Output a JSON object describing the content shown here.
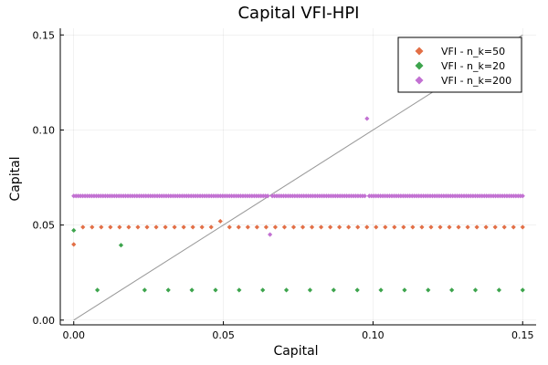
{
  "chart_data": {
    "type": "scatter",
    "title": "Capital VFI-HPI",
    "xlabel": "Capital",
    "ylabel": "Capital",
    "xlim": [
      -0.0045,
      0.1545
    ],
    "ylim": [
      -0.0025,
      0.1535
    ],
    "xticks": [
      0.0,
      0.05,
      0.1,
      0.15
    ],
    "xtick_labels": [
      "0.00",
      "0.05",
      "0.10",
      "0.15"
    ],
    "yticks": [
      0.0,
      0.05,
      0.1,
      0.15
    ],
    "ytick_labels": [
      "0.00",
      "0.05",
      "0.10",
      "0.15"
    ],
    "grid": true,
    "legend_position": "top-right",
    "reference_line": {
      "x": [
        0.0,
        0.15
      ],
      "y": [
        0.0,
        0.15
      ],
      "color": "#999999"
    },
    "series": [
      {
        "name": "VFI - n_k=50",
        "color": "#e26f46",
        "x_range": [
          0.0,
          0.15
        ],
        "count": 50,
        "base_value": 0.0489,
        "overrides": [
          {
            "x": 0.0,
            "y": 0.0398
          },
          {
            "x": 0.049,
            "y": 0.052
          }
        ]
      },
      {
        "name": "VFI - n_k=20",
        "color": "#3da44d",
        "x_range": [
          0.0,
          0.15
        ],
        "count": 20,
        "base_value": 0.0158,
        "overrides": [
          {
            "x": 0.0,
            "y": 0.0472
          },
          {
            "x": 0.0158,
            "y": 0.0394
          }
        ]
      },
      {
        "name": "VFI - n_k=200",
        "color": "#c271d2",
        "x_range": [
          0.0,
          0.15
        ],
        "count": 200,
        "base_value": 0.0653,
        "overrides": [
          {
            "x": 0.0653,
            "y": 0.045
          },
          {
            "x": 0.0977,
            "y": 0.106
          }
        ]
      }
    ]
  }
}
